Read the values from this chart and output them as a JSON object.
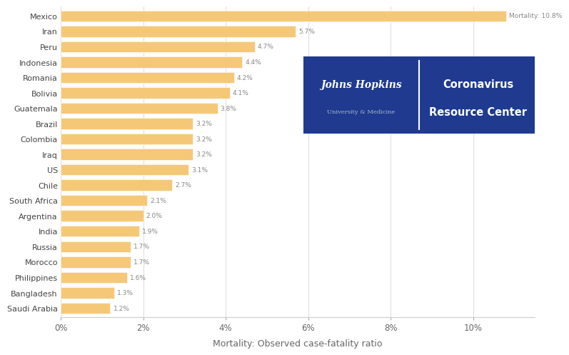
{
  "countries": [
    "Mexico",
    "Iran",
    "Peru",
    "Indonesia",
    "Romania",
    "Bolivia",
    "Guatemala",
    "Brazil",
    "Colombia",
    "Iraq",
    "US",
    "Chile",
    "South Africa",
    "Argentina",
    "India",
    "Russia",
    "Morocco",
    "Philippines",
    "Bangladesh",
    "Saudi Arabia"
  ],
  "values": [
    10.8,
    5.7,
    4.7,
    4.4,
    4.2,
    4.1,
    3.8,
    3.2,
    3.2,
    3.2,
    3.1,
    2.7,
    2.1,
    2.0,
    1.9,
    1.7,
    1.7,
    1.6,
    1.3,
    1.2
  ],
  "labels": [
    "Mortality: 10.8%",
    "5.7%",
    "4.7%",
    "4.4%",
    "4.2%",
    "4.1%",
    "3.8%",
    "3.2%",
    "3.2%",
    "3.2%",
    "3.1%",
    "2.7%",
    "2.1%",
    "2.0%",
    "1.9%",
    "1.7%",
    "1.7%",
    "1.6%",
    "1.3%",
    "1.2%"
  ],
  "bar_color": "#F5C878",
  "bg_color": "#ffffff",
  "xlabel": "Mortality: Observed case-fatality ratio",
  "xlim": [
    0,
    11.5
  ],
  "xticks": [
    0,
    2,
    4,
    6,
    8,
    10
  ],
  "xticklabels": [
    "0%",
    "2%",
    "4%",
    "6%",
    "8%",
    "10%"
  ],
  "bar_height": 0.72,
  "jhu_box_color": "#1f3a8f",
  "label_fontsize": 6.5,
  "axis_fontsize": 8.5,
  "country_fontsize": 8.0,
  "xlabel_fontsize": 9.0
}
